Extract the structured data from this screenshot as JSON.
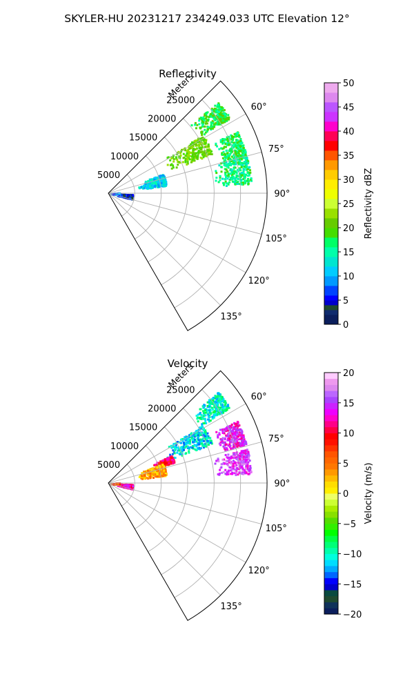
{
  "figure": {
    "title": "SKYLER-HU  20231217  234249.033 UTC Elevation 12°"
  },
  "chart_data": [
    {
      "type": "polar-sector",
      "title": "Reflectivity",
      "radial_axis_label": "Meters",
      "radial_ticks": [
        5000,
        10000,
        15000,
        20000,
        25000
      ],
      "radial_tick_labels": [
        "5000",
        "10000",
        "15000",
        "20000",
        "25000"
      ],
      "rmax": 30000,
      "theta_range_deg": [
        45,
        150
      ],
      "angle_ticks": [
        60,
        75,
        90,
        105,
        120,
        135
      ],
      "angle_tick_labels": [
        "60°",
        "75°",
        "90°",
        "105°",
        "120°",
        "135°"
      ],
      "colorbar": {
        "label": "Reflectivity dBZ",
        "range": [
          0,
          50
        ],
        "ticks": [
          0,
          5,
          10,
          15,
          20,
          25,
          30,
          35,
          40,
          45,
          50
        ],
        "tick_labels": [
          "0",
          "5",
          "10",
          "15",
          "20",
          "25",
          "30",
          "35",
          "40",
          "45",
          "50"
        ]
      },
      "echo_regions": [
        {
          "theta": [
            50,
            58
          ],
          "range": [
            20000,
            27000
          ],
          "value": 18
        },
        {
          "theta": [
            58,
            69
          ],
          "range": [
            12000,
            21000
          ],
          "value": 21
        },
        {
          "theta": [
            64,
            75
          ],
          "range": [
            22000,
            27000
          ],
          "value": 17
        },
        {
          "theta": [
            70,
            82
          ],
          "range": [
            5500,
            11000
          ],
          "value": 12
        },
        {
          "theta": [
            74,
            86
          ],
          "range": [
            20000,
            27000
          ],
          "value": 16
        },
        {
          "theta": [
            92,
            103
          ],
          "range": [
            1500,
            4500
          ],
          "value": 5
        },
        {
          "theta": [
            85,
            96
          ],
          "range": [
            200,
            2000
          ],
          "value": 8
        }
      ]
    },
    {
      "type": "polar-sector",
      "title": "Velocity",
      "radial_axis_label": "Meters",
      "radial_ticks": [
        5000,
        10000,
        15000,
        20000,
        25000
      ],
      "radial_tick_labels": [
        "5000",
        "10000",
        "15000",
        "20000",
        "25000"
      ],
      "rmax": 30000,
      "theta_range_deg": [
        45,
        150
      ],
      "angle_ticks": [
        60,
        75,
        90,
        105,
        120,
        135
      ],
      "angle_tick_labels": [
        "60°",
        "75°",
        "90°",
        "105°",
        "120°",
        "135°"
      ],
      "colorbar": {
        "label": "Velocity (m/s)",
        "range": [
          -20,
          20
        ],
        "ticks": [
          -20,
          -15,
          -10,
          -5,
          0,
          5,
          10,
          15,
          20
        ],
        "tick_labels": [
          "−20",
          "−15",
          "−10",
          "−5",
          "0",
          "5",
          "10",
          "15",
          "20"
        ]
      },
      "echo_regions": [
        {
          "theta": [
            50,
            58
          ],
          "range": [
            20000,
            27000
          ],
          "value": -10
        },
        {
          "theta": [
            58,
            69
          ],
          "range": [
            12000,
            21000
          ],
          "value": -11
        },
        {
          "theta": [
            66,
            72
          ],
          "range": [
            9000,
            13000
          ],
          "value": 10
        },
        {
          "theta": [
            64,
            74
          ],
          "range": [
            22000,
            27000
          ],
          "value": 14
        },
        {
          "theta": [
            70,
            82
          ],
          "range": [
            5500,
            11000
          ],
          "value": 3
        },
        {
          "theta": [
            76,
            86
          ],
          "range": [
            20000,
            27000
          ],
          "value": 15
        },
        {
          "theta": [
            92,
            103
          ],
          "range": [
            1500,
            4500
          ],
          "value": 12
        },
        {
          "theta": [
            86,
            96
          ],
          "range": [
            200,
            2000
          ],
          "value": 7
        }
      ]
    }
  ]
}
